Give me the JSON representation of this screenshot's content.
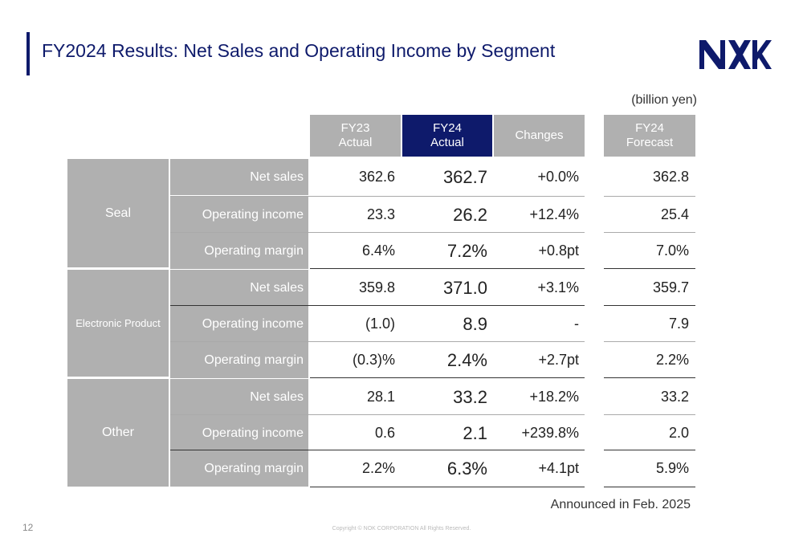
{
  "title": "FY2024 Results: Net Sales and Operating Income by Segment",
  "logo_text": "NOK",
  "unit": "(billion yen)",
  "columns": {
    "fy23": [
      "FY23",
      "Actual"
    ],
    "fy24": [
      "FY24",
      "Actual"
    ],
    "changes": "Changes",
    "forecast": [
      "FY24",
      "Forecast"
    ]
  },
  "segments": [
    {
      "name": "Seal",
      "rows": [
        {
          "label": "Net sales",
          "fy23": "362.6",
          "fy24": "362.7",
          "change": "+0.0%",
          "forecast": "362.8"
        },
        {
          "label": "Operating income",
          "fy23": "23.3",
          "fy24": "26.2",
          "change": "+12.4%",
          "forecast": "25.4"
        },
        {
          "label": "Operating margin",
          "fy23": "6.4%",
          "fy24": "7.2%",
          "change": "+0.8pt",
          "forecast": "7.0%"
        }
      ]
    },
    {
      "name": "Electronic Product",
      "rows": [
        {
          "label": "Net sales",
          "fy23": "359.8",
          "fy24": "371.0",
          "change": "+3.1%",
          "forecast": "359.7"
        },
        {
          "label": "Operating income",
          "fy23": "(1.0)",
          "fy24": "8.9",
          "change": "-",
          "forecast": "7.9"
        },
        {
          "label": "Operating margin",
          "fy23": "(0.3)%",
          "fy24": "2.4%",
          "change": "+2.7pt",
          "forecast": "2.2%"
        }
      ]
    },
    {
      "name": "Other",
      "rows": [
        {
          "label": "Net sales",
          "fy23": "28.1",
          "fy24": "33.2",
          "change": "+18.2%",
          "forecast": "33.2"
        },
        {
          "label": "Operating income",
          "fy23": "0.6",
          "fy24": "2.1",
          "change": "+239.8%",
          "forecast": "2.0"
        },
        {
          "label": "Operating margin",
          "fy23": "2.2%",
          "fy24": "6.3%",
          "change": "+4.1pt",
          "forecast": "5.9%"
        }
      ]
    }
  ],
  "announced": "Announced in Feb. 2025",
  "page_number": "12",
  "copyright": "Copyright © NOK CORPORATION All Rights Reserved.",
  "colors": {
    "navy": "#0e1a6b",
    "gray": "#b0b0b0"
  }
}
